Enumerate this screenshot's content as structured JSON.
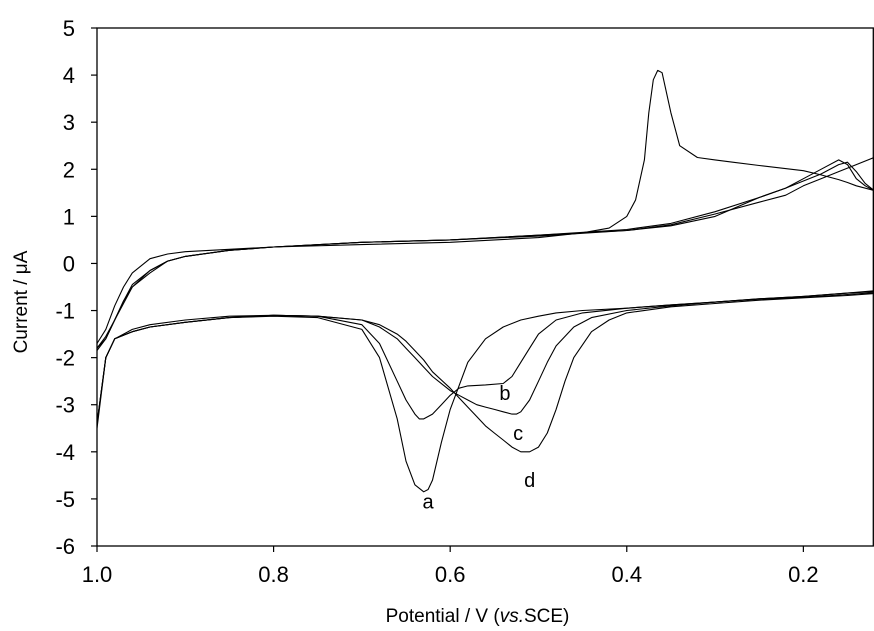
{
  "chart_data": {
    "type": "line",
    "title": "",
    "xlabel_prefix": "Potential / V (",
    "xlabel_italic": "vs.",
    "xlabel_suffix": "SCE)",
    "ylabel_prefix": "Current / ",
    "ylabel_mu": "μ",
    "ylabel_suffix": "A",
    "xlim": [
      1.0,
      0.12
    ],
    "ylim": [
      -6,
      5
    ],
    "x_reversed": true,
    "grid": false,
    "x_ticks": [
      {
        "value": 1.0,
        "label": "1.0"
      },
      {
        "value": 0.8,
        "label": "0.8"
      },
      {
        "value": 0.6,
        "label": "0.6"
      },
      {
        "value": 0.4,
        "label": "0.4"
      },
      {
        "value": 0.2,
        "label": "0.2"
      }
    ],
    "y_ticks": [
      {
        "value": 5,
        "label": "5"
      },
      {
        "value": 4,
        "label": "4"
      },
      {
        "value": 3,
        "label": "3"
      },
      {
        "value": 2,
        "label": "2"
      },
      {
        "value": 1,
        "label": "1"
      },
      {
        "value": 0,
        "label": "0"
      },
      {
        "value": -1,
        "label": "-1"
      },
      {
        "value": -2,
        "label": "-2"
      },
      {
        "value": -3,
        "label": "-3"
      },
      {
        "value": -4,
        "label": "-4"
      },
      {
        "value": -5,
        "label": "-5"
      },
      {
        "value": -6,
        "label": "-6"
      }
    ],
    "series": [
      {
        "label": "a",
        "label_at": [
          0.625,
          -5.2
        ],
        "x": [
          1.0,
          0.99,
          0.98,
          0.96,
          0.94,
          0.9,
          0.85,
          0.8,
          0.75,
          0.7,
          0.68,
          0.66,
          0.65,
          0.64,
          0.63,
          0.625,
          0.62,
          0.61,
          0.6,
          0.59,
          0.58,
          0.56,
          0.54,
          0.52,
          0.5,
          0.48,
          0.45,
          0.4,
          0.35,
          0.3,
          0.25,
          0.2,
          0.15,
          0.12,
          0.12,
          0.14,
          0.15,
          0.16,
          0.18,
          0.2,
          0.25,
          0.28,
          0.3,
          0.32,
          0.34,
          0.35,
          0.36,
          0.365,
          0.37,
          0.375,
          0.38,
          0.39,
          0.4,
          0.42,
          0.45,
          0.5,
          0.6,
          0.7,
          0.8,
          0.85,
          0.9,
          0.92,
          0.94,
          0.96,
          0.97,
          0.98,
          0.99,
          1.0
        ],
        "y": [
          -3.5,
          -2.0,
          -1.6,
          -1.45,
          -1.35,
          -1.25,
          -1.15,
          -1.12,
          -1.15,
          -1.4,
          -2.0,
          -3.3,
          -4.2,
          -4.7,
          -4.85,
          -4.8,
          -4.6,
          -3.8,
          -3.1,
          -2.6,
          -2.1,
          -1.6,
          -1.35,
          -1.2,
          -1.12,
          -1.05,
          -1.0,
          -0.95,
          -0.88,
          -0.82,
          -0.75,
          -0.7,
          -0.63,
          -0.6,
          1.55,
          1.65,
          1.72,
          1.78,
          1.88,
          1.97,
          2.08,
          2.15,
          2.2,
          2.25,
          2.5,
          3.2,
          4.05,
          4.1,
          3.9,
          3.2,
          2.2,
          1.35,
          1.0,
          0.75,
          0.65,
          0.55,
          0.45,
          0.4,
          0.35,
          0.3,
          0.25,
          0.2,
          0.1,
          -0.2,
          -0.5,
          -0.9,
          -1.4,
          -1.7
        ]
      },
      {
        "label": "b",
        "label_at": [
          0.538,
          -2.9
        ],
        "x": [
          1.0,
          0.99,
          0.98,
          0.96,
          0.94,
          0.9,
          0.85,
          0.8,
          0.75,
          0.7,
          0.68,
          0.66,
          0.65,
          0.64,
          0.635,
          0.63,
          0.62,
          0.61,
          0.6,
          0.59,
          0.58,
          0.56,
          0.54,
          0.53,
          0.52,
          0.51,
          0.5,
          0.48,
          0.45,
          0.4,
          0.35,
          0.3,
          0.25,
          0.2,
          0.15,
          0.12,
          0.12,
          0.13,
          0.14,
          0.15,
          0.16,
          0.18,
          0.2,
          0.22,
          0.25,
          0.3,
          0.35,
          0.4,
          0.5,
          0.6,
          0.7,
          0.8,
          0.85,
          0.9,
          0.92,
          0.94,
          0.96,
          0.97,
          0.98,
          0.99,
          1.0
        ],
        "y": [
          -3.4,
          -2.0,
          -1.6,
          -1.4,
          -1.3,
          -1.2,
          -1.12,
          -1.1,
          -1.12,
          -1.3,
          -1.7,
          -2.5,
          -2.9,
          -3.2,
          -3.3,
          -3.3,
          -3.2,
          -3.0,
          -2.8,
          -2.65,
          -2.6,
          -2.58,
          -2.55,
          -2.4,
          -2.1,
          -1.8,
          -1.5,
          -1.2,
          -1.05,
          -0.95,
          -0.88,
          -0.82,
          -0.75,
          -0.7,
          -0.63,
          -0.58,
          1.55,
          1.7,
          1.95,
          2.15,
          2.1,
          1.9,
          1.75,
          1.6,
          1.4,
          1.0,
          0.8,
          0.7,
          0.6,
          0.5,
          0.45,
          0.35,
          0.28,
          0.15,
          0.05,
          -0.15,
          -0.5,
          -0.8,
          -1.2,
          -1.6,
          -1.8
        ]
      },
      {
        "label": "c",
        "label_at": [
          0.523,
          -3.75
        ],
        "x": [
          1.0,
          0.99,
          0.98,
          0.96,
          0.94,
          0.9,
          0.85,
          0.8,
          0.75,
          0.7,
          0.68,
          0.66,
          0.65,
          0.64,
          0.63,
          0.62,
          0.6,
          0.59,
          0.58,
          0.57,
          0.56,
          0.55,
          0.54,
          0.53,
          0.525,
          0.52,
          0.51,
          0.5,
          0.49,
          0.48,
          0.46,
          0.44,
          0.4,
          0.35,
          0.3,
          0.25,
          0.2,
          0.15,
          0.12,
          0.12,
          0.13,
          0.14,
          0.15,
          0.16,
          0.18,
          0.2,
          0.22,
          0.25,
          0.3,
          0.35,
          0.4,
          0.5,
          0.6,
          0.7,
          0.8,
          0.85,
          0.9,
          0.92,
          0.94,
          0.96,
          0.97,
          0.98,
          0.99,
          1.0
        ],
        "y": [
          -3.4,
          -2.0,
          -1.6,
          -1.45,
          -1.35,
          -1.25,
          -1.15,
          -1.1,
          -1.12,
          -1.2,
          -1.35,
          -1.6,
          -1.8,
          -2.0,
          -2.2,
          -2.4,
          -2.7,
          -2.8,
          -2.9,
          -3.0,
          -3.05,
          -3.1,
          -3.15,
          -3.2,
          -3.2,
          -3.15,
          -2.9,
          -2.5,
          -2.1,
          -1.75,
          -1.35,
          -1.15,
          -1.0,
          -0.9,
          -0.82,
          -0.76,
          -0.72,
          -0.66,
          -0.62,
          1.55,
          1.65,
          1.8,
          2.1,
          2.2,
          2.0,
          1.8,
          1.6,
          1.4,
          1.1,
          0.85,
          0.72,
          0.6,
          0.5,
          0.45,
          0.35,
          0.28,
          0.15,
          0.05,
          -0.15,
          -0.45,
          -0.8,
          -1.2,
          -1.55,
          -1.8
        ]
      },
      {
        "label": "d",
        "label_at": [
          0.51,
          -4.75
        ],
        "x": [
          1.0,
          0.99,
          0.98,
          0.96,
          0.94,
          0.9,
          0.85,
          0.8,
          0.75,
          0.7,
          0.68,
          0.66,
          0.65,
          0.64,
          0.63,
          0.62,
          0.6,
          0.59,
          0.58,
          0.57,
          0.56,
          0.55,
          0.54,
          0.53,
          0.52,
          0.51,
          0.5,
          0.49,
          0.48,
          0.47,
          0.46,
          0.44,
          0.42,
          0.4,
          0.35,
          0.3,
          0.25,
          0.2,
          0.15,
          0.12,
          0.12,
          0.14,
          0.16,
          0.18,
          0.2,
          0.22,
          0.25,
          0.3,
          0.35,
          0.4,
          0.5,
          0.6,
          0.7,
          0.8,
          0.85,
          0.9,
          0.92,
          0.94,
          0.96,
          0.97,
          0.98,
          0.99,
          1.0
        ],
        "y": [
          -3.4,
          -2.0,
          -1.6,
          -1.45,
          -1.35,
          -1.25,
          -1.15,
          -1.1,
          -1.12,
          -1.2,
          -1.3,
          -1.5,
          -1.65,
          -1.85,
          -2.05,
          -2.3,
          -2.65,
          -2.85,
          -3.05,
          -3.25,
          -3.45,
          -3.6,
          -3.75,
          -3.9,
          -4.0,
          -4.0,
          -3.9,
          -3.6,
          -3.1,
          -2.5,
          -2.0,
          -1.45,
          -1.2,
          -1.05,
          -0.92,
          -0.85,
          -0.78,
          -0.73,
          -0.68,
          -0.64,
          2.25,
          2.1,
          1.95,
          1.8,
          1.65,
          1.45,
          1.3,
          1.05,
          0.82,
          0.7,
          0.58,
          0.5,
          0.45,
          0.35,
          0.28,
          0.15,
          0.05,
          -0.2,
          -0.5,
          -0.85,
          -1.2,
          -1.6,
          -1.85
        ]
      }
    ]
  }
}
